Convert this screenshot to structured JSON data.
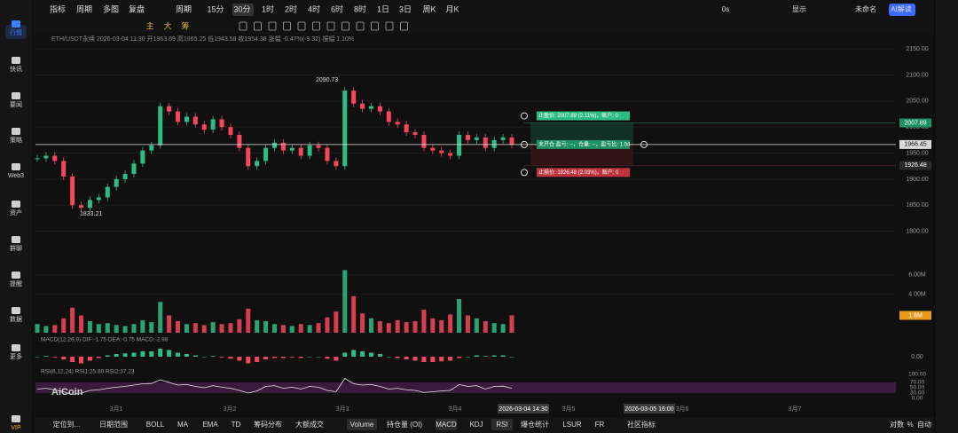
{
  "sidebar": {
    "items": [
      "行情",
      "快讯",
      "要闻",
      "策略",
      "Web3",
      "资产",
      "群聊",
      "提醒",
      "数据",
      "更多",
      "VIP"
    ]
  },
  "toolbar": {
    "left": [
      "指标",
      "周期",
      "多图",
      "复盘",
      "周期"
    ],
    "periods": [
      "15分",
      "30分",
      "1时",
      "2时",
      "4时",
      "6时",
      "8时",
      "1日",
      "3日",
      "周K",
      "月K"
    ],
    "selected": "30分",
    "right": [
      "0s",
      "显示",
      "未命名",
      "AI解读"
    ]
  },
  "toolbar2": {
    "items": [
      "主",
      "大",
      "筹"
    ]
  },
  "info": "ETH/USDT永续 2026-03-04 11:30 开1963.69 高1965.25 低1943.58 收1954.38 涨幅 -0.47%(-9.32) 振幅 1.10%",
  "price": {
    "ylim": [
      1750,
      2160
    ],
    "yticks": [
      {
        "value": 1800,
        "label": "1800.00"
      },
      {
        "value": 1850,
        "label": "1850.00"
      },
      {
        "value": 1900,
        "label": "1900.00"
      },
      {
        "value": 1950,
        "label": "1950.00"
      },
      {
        "value": 2000,
        "label": "2000.00"
      },
      {
        "value": 2050,
        "label": "2050.00"
      },
      {
        "value": 2100,
        "label": "2100.00"
      },
      {
        "value": 2150,
        "label": "2150.00"
      }
    ],
    "closes": [
      1940,
      1945,
      1935,
      1905,
      1850,
      1845,
      1860,
      1865,
      1885,
      1900,
      1910,
      1930,
      1955,
      1965,
      2040,
      2030,
      2010,
      2020,
      2005,
      1995,
      2015,
      2000,
      1985,
      1960,
      1925,
      1935,
      1960,
      1970,
      1955,
      1960,
      1945,
      1965,
      1960,
      1935,
      1925,
      2070,
      2045,
      2035,
      2040,
      2030,
      2010,
      2005,
      1990,
      1985,
      1960,
      1955,
      1950,
      1945,
      1985,
      1975,
      1980,
      1960,
      1975,
      1980,
      1966
    ],
    "high": 2090.73,
    "low": 1833.21,
    "current": 1966.45,
    "take_profit": 2007.89,
    "stop_loss": 1926.48,
    "tp_text": "止盈价: 2007.89 (2.11%)，账户: 0",
    "pos_text": "未开仓 盈亏: --，仓量: --，盈亏比: 1.04",
    "sl_text": "止损价: 1926.48 (2.03%)，账户: 0"
  },
  "volume": {
    "ylim": [
      0,
      7000000
    ],
    "yticks": [
      {
        "value": 4000000,
        "label": "4.00M"
      },
      {
        "value": 6000000,
        "label": "6.00M"
      }
    ],
    "values": [
      900000,
      700000,
      800000,
      1500000,
      2600000,
      1800000,
      1200000,
      900000,
      1000000,
      800000,
      700000,
      900000,
      1300000,
      1100000,
      3200000,
      1800000,
      1200000,
      900000,
      1000000,
      800000,
      1100000,
      900000,
      1000000,
      1400000,
      2500000,
      1300000,
      1200000,
      900000,
      800000,
      700000,
      900000,
      800000,
      1000000,
      1600000,
      2200000,
      6500000,
      3800000,
      2000000,
      1500000,
      1200000,
      1000000,
      1300000,
      1100000,
      1200000,
      2400000,
      1500000,
      1300000,
      1900000,
      3500000,
      1800000,
      1500000,
      1200000,
      1000000,
      900000,
      1800000
    ],
    "last_label": "1.8M"
  },
  "macd": {
    "label": "MACD(12,26,9) DIF:-1.75 DEA:-0.75 MACD:-2.98",
    "ylim": [
      -10,
      10
    ],
    "yticks": [
      {
        "value": 0,
        "label": "0.00"
      }
    ],
    "hist": [
      0,
      0.5,
      -0.5,
      -2,
      -4,
      -5,
      -3,
      -1,
      1,
      2,
      2.5,
      3,
      4,
      4,
      6,
      5,
      3,
      2,
      1,
      0,
      0.5,
      -0.5,
      -1.5,
      -3,
      -5,
      -4,
      -2,
      -1,
      -1,
      -0.5,
      -1,
      0,
      0,
      -1.5,
      -3,
      3,
      5,
      4,
      3,
      2,
      0,
      -1,
      -2,
      -3,
      -4,
      -4,
      -3.5,
      -3,
      -1,
      0,
      1,
      0.5,
      1,
      1,
      0
    ]
  },
  "rsi": {
    "label": "RSI(6,12,24) RSI1:25.89 RSI2:37.23",
    "ylim": [
      0,
      100
    ],
    "yticks": [
      {
        "value": 0,
        "label": "0.00"
      },
      {
        "value": 30,
        "label": "30.00"
      },
      {
        "value": 50,
        "label": "50.00"
      },
      {
        "value": 70,
        "label": "70.00"
      },
      {
        "value": 100,
        "label": "100.00"
      }
    ],
    "values": [
      45,
      48,
      42,
      35,
      25,
      30,
      40,
      42,
      48,
      52,
      55,
      60,
      65,
      66,
      80,
      70,
      60,
      62,
      55,
      50,
      58,
      52,
      48,
      40,
      30,
      38,
      55,
      58,
      48,
      52,
      45,
      55,
      52,
      40,
      35,
      85,
      65,
      60,
      62,
      55,
      45,
      48,
      42,
      40,
      32,
      35,
      38,
      40,
      62,
      55,
      58,
      45,
      55,
      56,
      48
    ]
  },
  "xaxis": {
    "labels": [
      "3月1",
      "3月2",
      "3月3",
      "3月4",
      "2026-03-04 14:30",
      "3月5",
      "2026-03-05 16:00",
      "3月6",
      "3月7"
    ]
  },
  "watermark": "AiCoin",
  "bottom": {
    "left": [
      "定位到...",
      "日期范围"
    ],
    "indicators": [
      "BOLL",
      "MA",
      "EMA",
      "TD",
      "筹码分布",
      "大额成交",
      "Volume",
      "持仓量 (OI)",
      "MACD",
      "KDJ",
      "RSI",
      "爆仓统计",
      "LSUR",
      "FR",
      "社区指标"
    ],
    "right": [
      "对数",
      "%",
      "自动"
    ]
  }
}
